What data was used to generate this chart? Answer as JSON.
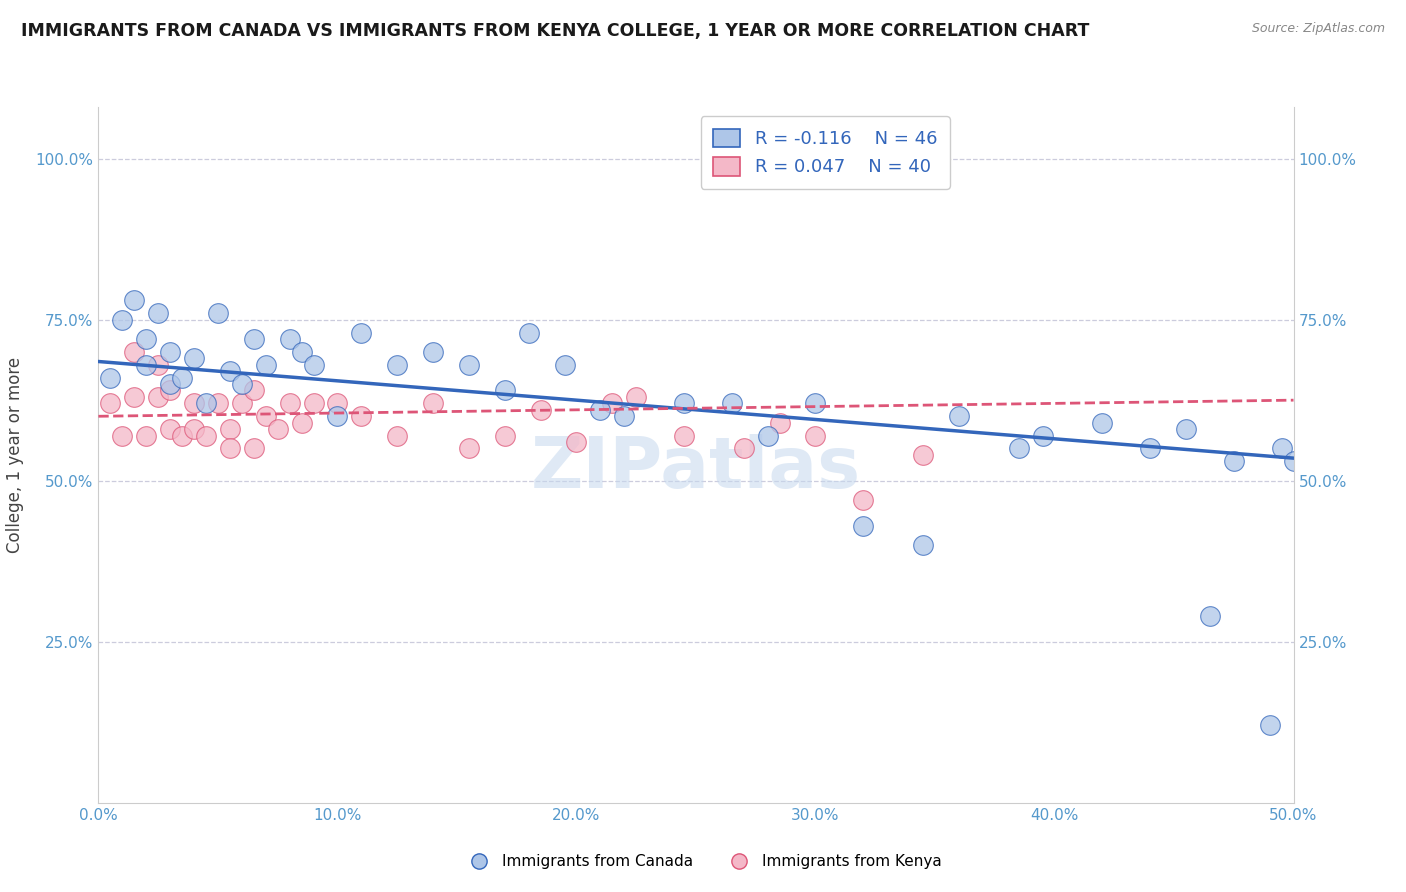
{
  "title": "IMMIGRANTS FROM CANADA VS IMMIGRANTS FROM KENYA COLLEGE, 1 YEAR OR MORE CORRELATION CHART",
  "source": "Source: ZipAtlas.com",
  "ylabel": "College, 1 year or more",
  "xlim": [
    0.0,
    0.5
  ],
  "ylim": [
    0.0,
    1.08
  ],
  "xtick_labels": [
    "0.0%",
    "10.0%",
    "20.0%",
    "30.0%",
    "40.0%",
    "50.0%"
  ],
  "xtick_vals": [
    0.0,
    0.1,
    0.2,
    0.3,
    0.4,
    0.5
  ],
  "ytick_labels": [
    "25.0%",
    "50.0%",
    "75.0%",
    "100.0%"
  ],
  "ytick_vals": [
    0.25,
    0.5,
    0.75,
    1.0
  ],
  "legend_r_canada": "R = -0.116",
  "legend_n_canada": "N = 46",
  "legend_r_kenya": "R = 0.047",
  "legend_n_kenya": "N = 40",
  "canada_color": "#aec6e8",
  "kenya_color": "#f4b8c8",
  "canada_line_color": "#3366bb",
  "kenya_line_color": "#dd5577",
  "background_color": "#ffffff",
  "watermark": "ZIPatlas",
  "canada_scatter_x": [
    0.005,
    0.01,
    0.015,
    0.02,
    0.02,
    0.025,
    0.03,
    0.03,
    0.035,
    0.04,
    0.045,
    0.05,
    0.055,
    0.06,
    0.065,
    0.07,
    0.08,
    0.085,
    0.09,
    0.1,
    0.11,
    0.125,
    0.14,
    0.155,
    0.17,
    0.18,
    0.195,
    0.21,
    0.22,
    0.245,
    0.265,
    0.28,
    0.3,
    0.32,
    0.345,
    0.36,
    0.385,
    0.395,
    0.42,
    0.44,
    0.455,
    0.465,
    0.475,
    0.49,
    0.495,
    0.5
  ],
  "canada_scatter_y": [
    0.66,
    0.75,
    0.78,
    0.72,
    0.68,
    0.76,
    0.7,
    0.65,
    0.66,
    0.69,
    0.62,
    0.76,
    0.67,
    0.65,
    0.72,
    0.68,
    0.72,
    0.7,
    0.68,
    0.6,
    0.73,
    0.68,
    0.7,
    0.68,
    0.64,
    0.73,
    0.68,
    0.61,
    0.6,
    0.62,
    0.62,
    0.57,
    0.62,
    0.43,
    0.4,
    0.6,
    0.55,
    0.57,
    0.59,
    0.55,
    0.58,
    0.29,
    0.53,
    0.12,
    0.55,
    0.53
  ],
  "kenya_scatter_x": [
    0.005,
    0.01,
    0.015,
    0.015,
    0.02,
    0.025,
    0.025,
    0.03,
    0.03,
    0.035,
    0.04,
    0.04,
    0.045,
    0.05,
    0.055,
    0.055,
    0.06,
    0.065,
    0.065,
    0.07,
    0.075,
    0.08,
    0.085,
    0.09,
    0.1,
    0.11,
    0.125,
    0.14,
    0.155,
    0.17,
    0.185,
    0.2,
    0.215,
    0.225,
    0.245,
    0.27,
    0.285,
    0.3,
    0.32,
    0.345
  ],
  "kenya_scatter_y": [
    0.62,
    0.57,
    0.63,
    0.7,
    0.57,
    0.63,
    0.68,
    0.58,
    0.64,
    0.57,
    0.58,
    0.62,
    0.57,
    0.62,
    0.58,
    0.55,
    0.62,
    0.55,
    0.64,
    0.6,
    0.58,
    0.62,
    0.59,
    0.62,
    0.62,
    0.6,
    0.57,
    0.62,
    0.55,
    0.57,
    0.61,
    0.56,
    0.62,
    0.63,
    0.57,
    0.55,
    0.59,
    0.57,
    0.47,
    0.54
  ],
  "canada_trend_x": [
    0.0,
    0.5
  ],
  "canada_trend_y": [
    0.685,
    0.535
  ],
  "kenya_trend_x": [
    0.0,
    0.5
  ],
  "kenya_trend_y": [
    0.6,
    0.625
  ]
}
